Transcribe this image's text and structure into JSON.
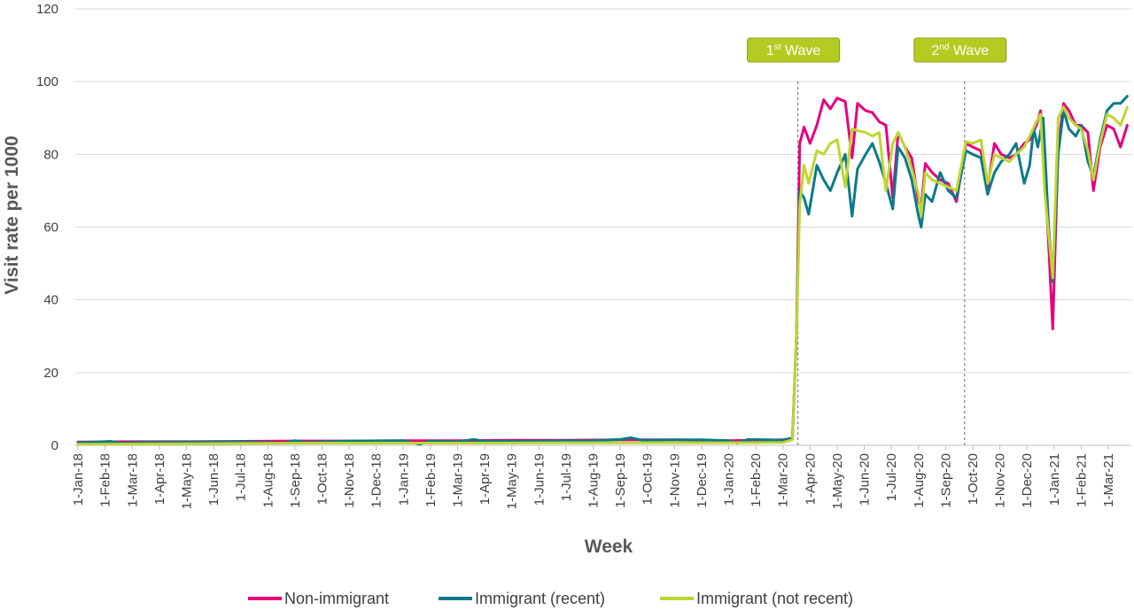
{
  "chart_data": {
    "type": "line",
    "xlabel": "Week",
    "ylabel": "Visit rate per 1000",
    "ylim": [
      0,
      120
    ],
    "yticks": [
      0,
      20,
      40,
      60,
      80,
      100,
      120
    ],
    "x_tick_labels": [
      "1-Jan-18",
      "1-Feb-18",
      "1-Mar-18",
      "1-Apr-18",
      "1-May-18",
      "1-Jun-18",
      "1-Jul-18",
      "1-Aug-18",
      "1-Sep-18",
      "1-Oct-18",
      "1-Nov-18",
      "1-Dec-18",
      "1-Jan-19",
      "1-Feb-19",
      "1-Mar-19",
      "1-Apr-19",
      "1-May-19",
      "1-Jun-19",
      "1-Jul-19",
      "1-Aug-19",
      "1-Sep-19",
      "1-Oct-19",
      "1-Nov-19",
      "1-Dec-19",
      "1-Jan-20",
      "1-Feb-20",
      "1-Mar-20",
      "1-Apr-20",
      "1-May-20",
      "1-Jun-20",
      "1-Jul-20",
      "1-Aug-20",
      "1-Sep-20",
      "1-Oct-20",
      "1-Nov-20",
      "1-Dec-20",
      "1-Jan-21",
      "1-Feb-21",
      "1-Mar-21"
    ],
    "grid": "horizontal",
    "legend_position": "bottom",
    "x_time_unit": "month",
    "x_range": [
      -0.1,
      38.85
    ],
    "wave_markers": [
      {
        "base": "1",
        "sup": "st",
        "rest": " Wave",
        "x": 26.55
      },
      {
        "base": "2",
        "sup": "nd",
        "rest": " Wave",
        "x": 32.7
      }
    ],
    "series": [
      {
        "name": "Non-immigrant",
        "color": "#E6007E",
        "points": [
          [
            0,
            0.9
          ],
          [
            2,
            1.0
          ],
          [
            4,
            1.0
          ],
          [
            6,
            1.1
          ],
          [
            8,
            1.2
          ],
          [
            10,
            1.2
          ],
          [
            12,
            1.3
          ],
          [
            14,
            1.3
          ],
          [
            16,
            1.4
          ],
          [
            18,
            1.4
          ],
          [
            20,
            1.5
          ],
          [
            22,
            1.5
          ],
          [
            24,
            1.3
          ],
          [
            26,
            1.5
          ],
          [
            26.35,
            2.0
          ],
          [
            26.5,
            30
          ],
          [
            26.62,
            83
          ],
          [
            26.78,
            87.5
          ],
          [
            27.0,
            83
          ],
          [
            27.25,
            88
          ],
          [
            27.5,
            95
          ],
          [
            27.75,
            92.5
          ],
          [
            28.0,
            95.5
          ],
          [
            28.3,
            94.5
          ],
          [
            28.55,
            79
          ],
          [
            28.75,
            94
          ],
          [
            29.05,
            92
          ],
          [
            29.3,
            91.5
          ],
          [
            29.55,
            89
          ],
          [
            29.8,
            88
          ],
          [
            30.05,
            68
          ],
          [
            30.25,
            86
          ],
          [
            30.5,
            82
          ],
          [
            30.75,
            79
          ],
          [
            31.0,
            67
          ],
          [
            31.1,
            65
          ],
          [
            31.25,
            77.5
          ],
          [
            31.5,
            75
          ],
          [
            31.8,
            73
          ],
          [
            32.1,
            72
          ],
          [
            32.4,
            67
          ],
          [
            32.75,
            83
          ],
          [
            33.0,
            82
          ],
          [
            33.3,
            81
          ],
          [
            33.55,
            71
          ],
          [
            33.8,
            83
          ],
          [
            34.05,
            80
          ],
          [
            34.35,
            79
          ],
          [
            34.6,
            80
          ],
          [
            34.9,
            83
          ],
          [
            35.1,
            84
          ],
          [
            35.35,
            88
          ],
          [
            35.5,
            92
          ],
          [
            35.65,
            75
          ],
          [
            35.8,
            55
          ],
          [
            35.95,
            32
          ],
          [
            36.15,
            82
          ],
          [
            36.35,
            94
          ],
          [
            36.55,
            92
          ],
          [
            36.8,
            88
          ],
          [
            37.0,
            88
          ],
          [
            37.25,
            86
          ],
          [
            37.45,
            70
          ],
          [
            37.7,
            82
          ],
          [
            37.95,
            88
          ],
          [
            38.2,
            87
          ],
          [
            38.45,
            82
          ],
          [
            38.7,
            88
          ]
        ]
      },
      {
        "name": "Immigrant (recent)",
        "color": "#0A7A8A",
        "points": [
          [
            0,
            0.7
          ],
          [
            1.2,
            1.1
          ],
          [
            1.6,
            0.6
          ],
          [
            2,
            0.8
          ],
          [
            4,
            0.9
          ],
          [
            6,
            1.0
          ],
          [
            7.6,
            0.6
          ],
          [
            8,
            1.3
          ],
          [
            8.4,
            0.8
          ],
          [
            10,
            1.2
          ],
          [
            12,
            1.3
          ],
          [
            12.6,
            0.3
          ],
          [
            13,
            1.2
          ],
          [
            14,
            1.0
          ],
          [
            14.6,
            1.6
          ],
          [
            15,
            1.1
          ],
          [
            17,
            1.2
          ],
          [
            19,
            1.3
          ],
          [
            20,
            1.6
          ],
          [
            20.4,
            2.1
          ],
          [
            20.8,
            1.4
          ],
          [
            22,
            1.5
          ],
          [
            23,
            1.5
          ],
          [
            24,
            1.3
          ],
          [
            24.3,
            0.6
          ],
          [
            24.7,
            1.6
          ],
          [
            25.5,
            1.5
          ],
          [
            26,
            1.4
          ],
          [
            26.35,
            2.0
          ],
          [
            26.5,
            30
          ],
          [
            26.62,
            70
          ],
          [
            26.78,
            68
          ],
          [
            26.95,
            63.5
          ],
          [
            27.25,
            77
          ],
          [
            27.5,
            73
          ],
          [
            27.75,
            70
          ],
          [
            28.0,
            75
          ],
          [
            28.3,
            80
          ],
          [
            28.55,
            63
          ],
          [
            28.75,
            76
          ],
          [
            29.05,
            80
          ],
          [
            29.3,
            83
          ],
          [
            29.55,
            78
          ],
          [
            29.8,
            72
          ],
          [
            30.05,
            65
          ],
          [
            30.25,
            82
          ],
          [
            30.5,
            79
          ],
          [
            30.75,
            73
          ],
          [
            31.0,
            63
          ],
          [
            31.1,
            60
          ],
          [
            31.25,
            69
          ],
          [
            31.5,
            67
          ],
          [
            31.8,
            75
          ],
          [
            32.1,
            70
          ],
          [
            32.4,
            68
          ],
          [
            32.75,
            81
          ],
          [
            33.0,
            80
          ],
          [
            33.3,
            79
          ],
          [
            33.55,
            69
          ],
          [
            33.8,
            75
          ],
          [
            34.05,
            78
          ],
          [
            34.35,
            80
          ],
          [
            34.6,
            83
          ],
          [
            34.9,
            72
          ],
          [
            35.1,
            77
          ],
          [
            35.25,
            87
          ],
          [
            35.4,
            82
          ],
          [
            35.6,
            90
          ],
          [
            35.8,
            60
          ],
          [
            35.95,
            45
          ],
          [
            36.15,
            80
          ],
          [
            36.35,
            92
          ],
          [
            36.55,
            87
          ],
          [
            36.8,
            85
          ],
          [
            37.0,
            88
          ],
          [
            37.25,
            78
          ],
          [
            37.45,
            74
          ],
          [
            37.7,
            84
          ],
          [
            37.95,
            92
          ],
          [
            38.2,
            94
          ],
          [
            38.45,
            94
          ],
          [
            38.7,
            96
          ]
        ]
      },
      {
        "name": "Immigrant (not recent)",
        "color": "#BFD630",
        "points": [
          [
            0,
            0.3
          ],
          [
            3,
            0.4
          ],
          [
            6,
            0.5
          ],
          [
            9,
            0.6
          ],
          [
            12,
            0.6
          ],
          [
            15,
            0.6
          ],
          [
            18,
            0.7
          ],
          [
            21,
            0.7
          ],
          [
            24,
            0.7
          ],
          [
            26,
            0.8
          ],
          [
            26.35,
            1.5
          ],
          [
            26.5,
            30
          ],
          [
            26.62,
            66
          ],
          [
            26.78,
            77
          ],
          [
            26.95,
            72
          ],
          [
            27.25,
            81
          ],
          [
            27.5,
            80
          ],
          [
            27.75,
            83
          ],
          [
            28.0,
            84
          ],
          [
            28.3,
            71
          ],
          [
            28.55,
            87
          ],
          [
            28.75,
            86.5
          ],
          [
            29.05,
            86
          ],
          [
            29.3,
            85
          ],
          [
            29.55,
            86
          ],
          [
            29.8,
            70
          ],
          [
            30.05,
            83
          ],
          [
            30.25,
            86
          ],
          [
            30.5,
            82
          ],
          [
            30.75,
            76
          ],
          [
            31.0,
            69
          ],
          [
            31.1,
            63
          ],
          [
            31.25,
            75
          ],
          [
            31.5,
            73
          ],
          [
            31.8,
            72
          ],
          [
            32.1,
            71
          ],
          [
            32.4,
            70
          ],
          [
            32.75,
            83.5
          ],
          [
            33.0,
            83
          ],
          [
            33.3,
            84
          ],
          [
            33.55,
            72
          ],
          [
            33.8,
            80
          ],
          [
            34.05,
            79
          ],
          [
            34.35,
            78
          ],
          [
            34.6,
            80
          ],
          [
            34.9,
            82
          ],
          [
            35.1,
            85
          ],
          [
            35.35,
            89
          ],
          [
            35.5,
            91
          ],
          [
            35.65,
            70
          ],
          [
            35.8,
            58
          ],
          [
            35.95,
            46
          ],
          [
            36.15,
            90
          ],
          [
            36.35,
            93
          ],
          [
            36.55,
            90
          ],
          [
            36.8,
            88
          ],
          [
            37.0,
            87
          ],
          [
            37.25,
            81
          ],
          [
            37.45,
            73
          ],
          [
            37.7,
            83
          ],
          [
            37.95,
            91
          ],
          [
            38.2,
            90
          ],
          [
            38.45,
            88
          ],
          [
            38.7,
            93
          ]
        ]
      }
    ]
  }
}
